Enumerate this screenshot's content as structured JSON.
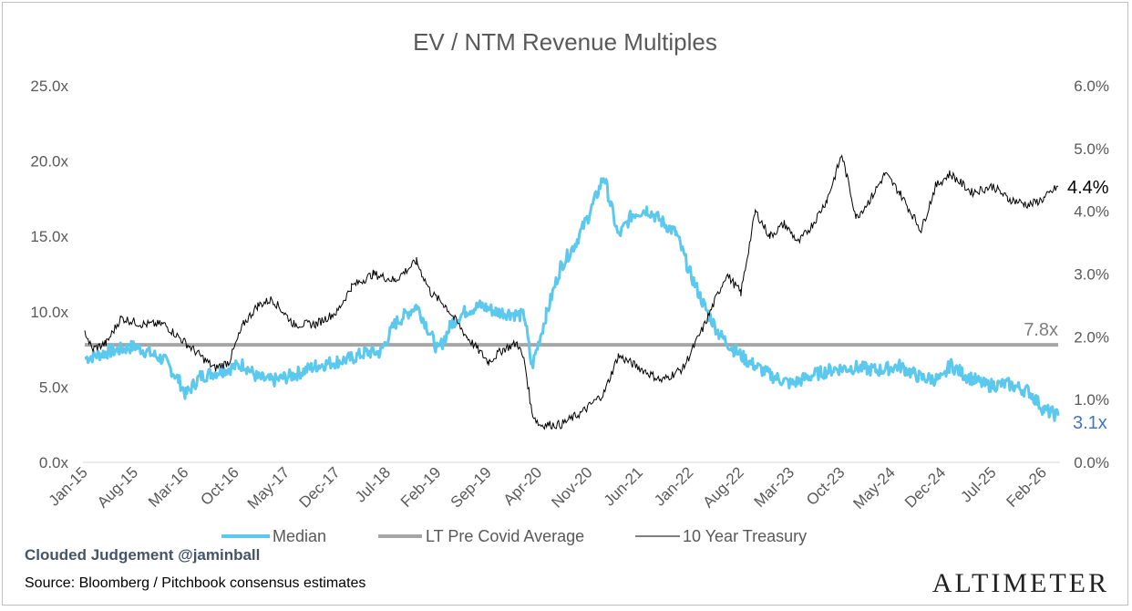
{
  "chart_data": {
    "type": "line",
    "title": "EV / NTM Revenue Multiples",
    "y_left": {
      "ticks": [
        "0.0x",
        "5.0x",
        "10.0x",
        "15.0x",
        "20.0x",
        "25.0x"
      ],
      "ylim": [
        0,
        25
      ]
    },
    "y_right": {
      "ticks": [
        "0.0%",
        "1.0%",
        "2.0%",
        "3.0%",
        "4.0%",
        "5.0%",
        "6.0%"
      ],
      "ylim": [
        0,
        6
      ]
    },
    "x_ticks": [
      "Jan-15",
      "Aug-15",
      "Mar-16",
      "Oct-16",
      "May-17",
      "Dec-17",
      "Jul-18",
      "Feb-19",
      "Sep-19",
      "Apr-20",
      "Nov-20",
      "Jun-21",
      "Jan-22",
      "Aug-22",
      "Mar-23",
      "Oct-23",
      "May-24",
      "Dec-24",
      "Jul-25",
      "Feb-26"
    ],
    "x_range": [
      "Jan-15",
      "Apr-26"
    ],
    "grid": false,
    "legend_position": "bottom",
    "series": [
      {
        "name": "Median",
        "axis": "left",
        "color": "#5bc8ee",
        "x": [
          "2015-01",
          "2015-04",
          "2015-08",
          "2015-12",
          "2016-02",
          "2016-03",
          "2016-05",
          "2016-08",
          "2016-11",
          "2017-01",
          "2017-03",
          "2017-06",
          "2017-09",
          "2017-12",
          "2018-02",
          "2018-04",
          "2018-06",
          "2018-08",
          "2018-09",
          "2018-11",
          "2018-12",
          "2019-02",
          "2019-04",
          "2019-06",
          "2019-08",
          "2019-10",
          "2019-12",
          "2020-02",
          "2020-03",
          "2020-05",
          "2020-07",
          "2020-09",
          "2020-11",
          "2021-01",
          "2021-02",
          "2021-03",
          "2021-05",
          "2021-07",
          "2021-09",
          "2021-11",
          "2022-01",
          "2022-03",
          "2022-05",
          "2022-07",
          "2022-09",
          "2022-12",
          "2023-03",
          "2023-06",
          "2023-09",
          "2023-12",
          "2024-03",
          "2024-06",
          "2024-09",
          "2024-12",
          "2025-01",
          "2025-03",
          "2025-06",
          "2025-09",
          "2025-12",
          "2026-02",
          "2026-04"
        ],
        "values": [
          6.9,
          7.3,
          7.7,
          6.8,
          5.5,
          4.5,
          5.7,
          6.1,
          6.5,
          5.6,
          5.4,
          5.8,
          6.4,
          6.7,
          6.9,
          7.3,
          7.3,
          9.2,
          9.6,
          10.4,
          9.5,
          7.4,
          9.3,
          10.1,
          10.4,
          10.0,
          9.9,
          9.7,
          6.3,
          9.8,
          13.0,
          14.5,
          16.5,
          19.0,
          17.0,
          15.0,
          16.5,
          16.8,
          16.0,
          15.2,
          12.5,
          10.3,
          8.5,
          7.5,
          6.7,
          5.8,
          5.2,
          5.8,
          6.2,
          6.3,
          6.1,
          6.4,
          5.6,
          5.5,
          6.5,
          5.8,
          5.1,
          5.2,
          4.7,
          3.5,
          3.1
        ]
      },
      {
        "name": "LT Pre Covid Average",
        "axis": "left",
        "color": "#a6a6a6",
        "value": 7.8
      },
      {
        "name": "10 Year Treasury",
        "axis": "right",
        "color": "#000000",
        "x": [
          "2015-01",
          "2015-02",
          "2015-04",
          "2015-06",
          "2015-09",
          "2015-12",
          "2016-03",
          "2016-07",
          "2016-09",
          "2016-11",
          "2017-01",
          "2017-03",
          "2017-06",
          "2017-09",
          "2017-12",
          "2018-02",
          "2018-05",
          "2018-08",
          "2018-11",
          "2019-01",
          "2019-03",
          "2019-06",
          "2019-09",
          "2019-11",
          "2020-01",
          "2020-02",
          "2020-03",
          "2020-04",
          "2020-07",
          "2020-10",
          "2021-01",
          "2021-03",
          "2021-06",
          "2021-09",
          "2021-12",
          "2022-03",
          "2022-06",
          "2022-08",
          "2022-10",
          "2022-12",
          "2023-02",
          "2023-04",
          "2023-06",
          "2023-08",
          "2023-10",
          "2023-12",
          "2024-02",
          "2024-04",
          "2024-06",
          "2024-09",
          "2024-11",
          "2025-01",
          "2025-04",
          "2025-07",
          "2025-09",
          "2025-12",
          "2026-02",
          "2026-04"
        ],
        "values": [
          2.1,
          1.8,
          1.9,
          2.3,
          2.2,
          2.2,
          1.9,
          1.5,
          1.6,
          2.2,
          2.5,
          2.6,
          2.2,
          2.2,
          2.4,
          2.8,
          3.0,
          2.9,
          3.2,
          2.7,
          2.5,
          2.0,
          1.6,
          1.8,
          1.9,
          1.6,
          0.8,
          0.6,
          0.6,
          0.8,
          1.1,
          1.7,
          1.5,
          1.3,
          1.5,
          2.2,
          3.0,
          2.7,
          4.0,
          3.6,
          3.8,
          3.5,
          3.8,
          4.2,
          4.9,
          3.9,
          4.2,
          4.6,
          4.3,
          3.7,
          4.4,
          4.6,
          4.3,
          4.4,
          4.2,
          4.1,
          4.2,
          4.4
        ]
      }
    ],
    "end_labels": {
      "median": "3.1x",
      "average": "7.8x",
      "treasury": "4.4%"
    }
  },
  "footer": {
    "brand": "Clouded Judgement @jaminball",
    "source": "Source: Bloomberg / Pitchbook consensus estimates",
    "logo": "ALTIMETER"
  }
}
